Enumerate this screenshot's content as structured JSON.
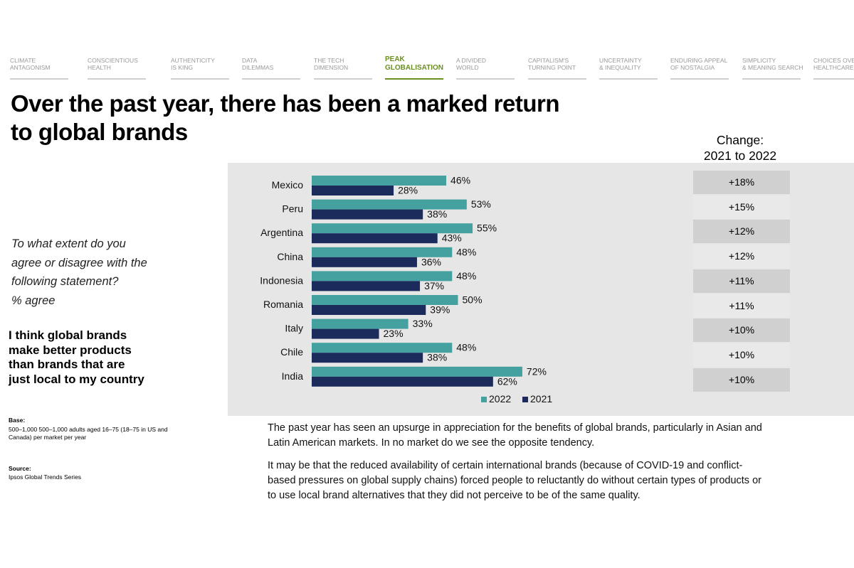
{
  "nav": [
    {
      "line1": "CLIMATE",
      "line2": "ANTAGONISM",
      "active": false
    },
    {
      "line1": "CONSCIENTIOUS",
      "line2": "HEALTH",
      "active": false
    },
    {
      "line1": "AUTHENTICITY",
      "line2": "IS KING",
      "active": false
    },
    {
      "line1": "DATA",
      "line2": "DILEMMAS",
      "active": false
    },
    {
      "line1": "THE TECH",
      "line2": "DIMENSION",
      "active": false
    },
    {
      "line1": "PEAK",
      "line2": "GLOBALISATION",
      "active": true
    },
    {
      "line1": "A DIVIDED",
      "line2": "WORLD",
      "active": false
    },
    {
      "line1": "CAPITALISM'S",
      "line2": "TURNING POINT",
      "active": false
    },
    {
      "line1": "UNCERTAINTY",
      "line2": "& INEQUALITY",
      "active": false
    },
    {
      "line1": "ENDURING APPEAL",
      "line2": "OF NOSTALGIA",
      "active": false
    },
    {
      "line1": "SIMPLICITY",
      "line2": "& MEANING SEARCH",
      "active": false
    },
    {
      "line1": "CHOICES OVER",
      "line2": "HEALTHCARE",
      "active": false
    }
  ],
  "title": {
    "line1": "Over the past year, there has been a marked return",
    "line2": "to global brands"
  },
  "question": {
    "line1": "To what extent do you",
    "line2": "agree or disagree with the",
    "line3": "following statement?",
    "line4": "% agree"
  },
  "statement": {
    "line1": "I think global brands",
    "line2": "make better products",
    "line3": "than brands that are",
    "line4": "just local to my country"
  },
  "base": {
    "heading": "Base:",
    "text": "500–1,000 500–1,000 adults aged 16–75 (18–75 in US and Canada) per market per year"
  },
  "source": {
    "heading": "Source:",
    "text": "Ipsos Global Trends Series"
  },
  "change_header": {
    "line1": "Change:",
    "line2": "2021 to 2022"
  },
  "changes": [
    "+18%",
    "+15%",
    "+12%",
    "+12%",
    "+11%",
    "+11%",
    "+10%",
    "+10%",
    "+10%"
  ],
  "body": {
    "p1_line1": "The past year has seen an upsurge in appreciation for the benefits of global brands, particularly in Asian and",
    "p1_line2": "Latin American markets. In no market do we see the opposite tendency.",
    "p2_line1": "It may be that the reduced availability of certain international brands (because of COVID-19 and conflict-",
    "p2_line2": "based pressures on global supply chains) forced people to reluctantly do without certain types of products or",
    "p2_line3": "to use local brand alternatives that they did not perceive to be of the same quality."
  },
  "colors": {
    "series_2022": "#45a0a0",
    "series_2021": "#1a2b5c",
    "nav_active": "#6b8e23",
    "chart_bg": "#e6e6e6"
  },
  "chart_data": {
    "type": "bar",
    "orientation": "horizontal",
    "categories": [
      "Mexico",
      "Peru",
      "Argentina",
      "China",
      "Indonesia",
      "Romania",
      "Italy",
      "Chile",
      "India"
    ],
    "series": [
      {
        "name": "2022",
        "values": [
          46,
          53,
          55,
          48,
          48,
          50,
          33,
          48,
          72
        ],
        "labels": [
          "46%",
          "53%",
          "55%",
          "48%",
          "48%",
          "50%",
          "33%",
          "48%",
          "72%"
        ]
      },
      {
        "name": "2021",
        "values": [
          28,
          38,
          43,
          36,
          37,
          39,
          23,
          38,
          62
        ],
        "labels": [
          "28%",
          "38%",
          "43%",
          "36%",
          "37%",
          "39%",
          "23%",
          "38%",
          "62%"
        ]
      }
    ],
    "xlim": [
      0,
      100
    ],
    "grid": false,
    "legend_position": "bottom"
  }
}
